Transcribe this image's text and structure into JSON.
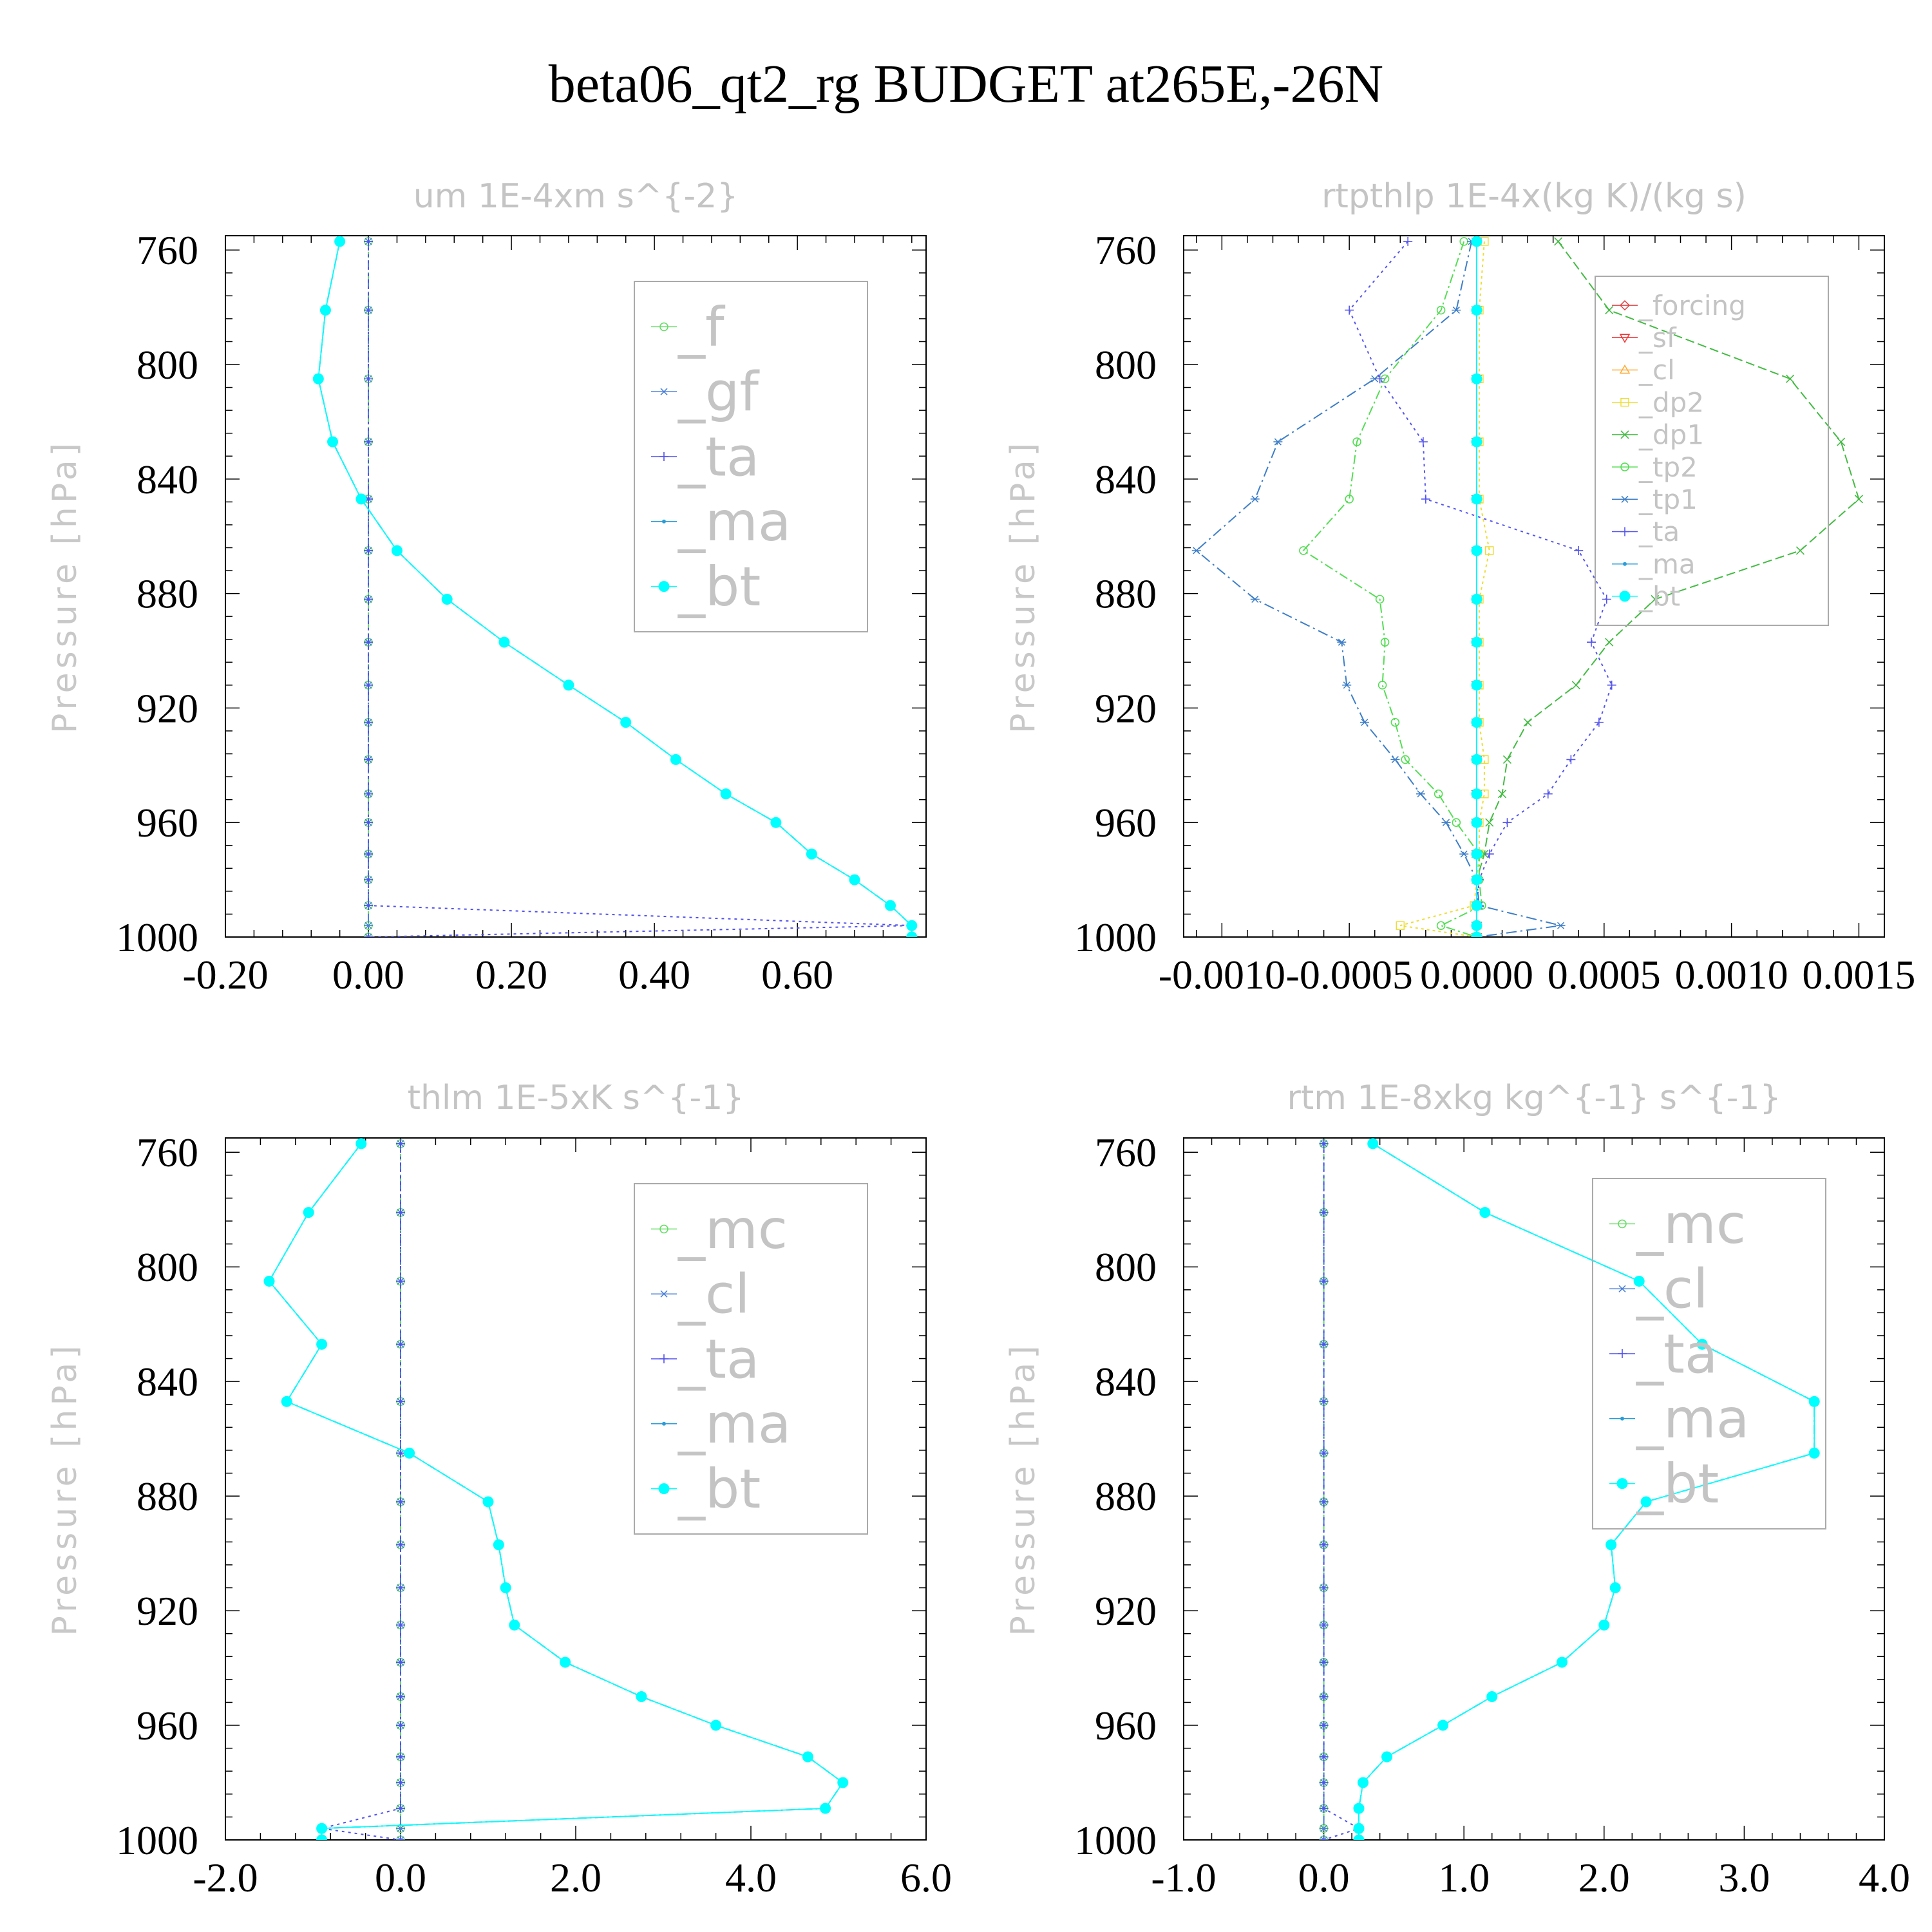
{
  "suptitle": "beta06_qt2_rg  BUDGET at265E,-26N",
  "chart_data": [
    {
      "type": "line",
      "title": "um  1E-4xm s^{-2}",
      "ylabel": "Pressure [hPa]",
      "ylim": [
        1000,
        755
      ],
      "xlim": [
        -0.2,
        0.78
      ],
      "xticks": [
        "-0.20",
        "0.00",
        "0.20",
        "0.40",
        "0.60"
      ],
      "xtick_values": [
        -0.2,
        0.0,
        0.2,
        0.4,
        0.6
      ],
      "yticks": [
        760,
        800,
        840,
        880,
        920,
        960,
        1000
      ],
      "levels": [
        757,
        781,
        805,
        827,
        847,
        865,
        882,
        897,
        912,
        925,
        938,
        950,
        960,
        971,
        980,
        989,
        996,
        1000
      ],
      "series": [
        {
          "name": "_f",
          "color": "#66dd66",
          "marker": "circle",
          "dash": "10,6",
          "values": [
            0,
            0,
            0,
            0,
            0,
            0,
            0,
            0,
            0,
            0,
            0,
            0,
            0,
            0,
            0,
            0,
            0,
            0
          ]
        },
        {
          "name": "_gf",
          "color": "#4a7fd8",
          "marker": "star",
          "dash": "14,6,3,6",
          "values": [
            0,
            0,
            0,
            0,
            0,
            0,
            0,
            0,
            0,
            0,
            0,
            0,
            0,
            0,
            0,
            0,
            0,
            0
          ]
        },
        {
          "name": "_ta",
          "color": "#5050ee",
          "marker": "plus",
          "dash": "4,6",
          "values": [
            0,
            0,
            0,
            0,
            0,
            0,
            0,
            0,
            0,
            0,
            0,
            0,
            0,
            0,
            0,
            0,
            0.76,
            0
          ]
        },
        {
          "name": "_ma",
          "color": "#2a9dd8",
          "marker": "dot",
          "dash": "14,5,3,5",
          "values": [
            -0.04,
            -0.06,
            -0.07,
            -0.05,
            -0.01,
            0.04,
            0.11,
            0.19,
            0.28,
            0.36,
            0.43,
            0.5,
            0.57,
            0.62,
            0.68,
            0.73,
            0.76,
            0.76
          ]
        },
        {
          "name": "_bt",
          "color": "#00ffff",
          "marker": "bigdot",
          "dash": "",
          "values": [
            -0.04,
            -0.06,
            -0.07,
            -0.05,
            -0.01,
            0.04,
            0.11,
            0.19,
            0.28,
            0.36,
            0.43,
            0.5,
            0.57,
            0.62,
            0.68,
            0.73,
            0.76,
            0.76
          ]
        }
      ],
      "legend": {
        "entries": [
          "_f",
          "_gf",
          "_ta",
          "_ma",
          "_bt"
        ],
        "placement": "top-right"
      }
    },
    {
      "type": "line",
      "title": "rtpthlp  1E-4x(kg K)/(kg s)",
      "ylabel": "Pressure [hPa]",
      "ylim": [
        1000,
        755
      ],
      "xlim": [
        -0.00115,
        0.0016
      ],
      "xticks": [
        "-0.0010",
        "-0.0005",
        "0.0000",
        "0.0005",
        "0.0010",
        "0.0015"
      ],
      "xtick_values": [
        -0.001,
        -0.0005,
        0.0,
        0.0005,
        0.001,
        0.0015
      ],
      "yticks": [
        760,
        800,
        840,
        880,
        920,
        960,
        1000
      ],
      "levels": [
        757,
        781,
        805,
        827,
        847,
        865,
        882,
        897,
        912,
        925,
        938,
        950,
        960,
        971,
        980,
        989,
        996,
        1000
      ],
      "series": [
        {
          "name": "_forcing",
          "color": "#dd4444",
          "marker": "diamond",
          "dash": "",
          "values": [
            0,
            0,
            0,
            0,
            0,
            0,
            0,
            0,
            0,
            0,
            0,
            0,
            0,
            0,
            0,
            0,
            0,
            0
          ]
        },
        {
          "name": "_sf",
          "color": "#ee3333",
          "marker": "triangle-down",
          "dash": "",
          "values": [
            0,
            0,
            0,
            0,
            0,
            0,
            0,
            0,
            0,
            0,
            0,
            0,
            0,
            0,
            0,
            0,
            0,
            0
          ]
        },
        {
          "name": "_cl",
          "color": "#ffaa33",
          "marker": "triangle-up",
          "dash": "",
          "values": [
            0,
            0,
            0,
            0,
            0,
            0,
            0,
            0,
            0,
            0,
            0,
            0,
            0,
            0,
            0,
            0,
            0,
            0
          ]
        },
        {
          "name": "_dp2",
          "color": "#eedd33",
          "marker": "square",
          "dash": "4,5",
          "values": [
            3e-05,
            1e-05,
            1e-05,
            1e-05,
            1e-05,
            5e-05,
            1e-05,
            1e-05,
            1e-05,
            1e-05,
            3e-05,
            3e-05,
            1e-05,
            1e-05,
            0.0,
            -1e-05,
            -0.0003,
            0
          ]
        },
        {
          "name": "_dp1",
          "color": "#44bb44",
          "marker": "cross",
          "dash": "14,6",
          "values": [
            0.00032,
            0.00052,
            0.00123,
            0.00143,
            0.0015,
            0.00127,
            0.0007,
            0.00052,
            0.00039,
            0.0002,
            0.00012,
            0.0001,
            5e-05,
            3e-05,
            0.0,
            0.0,
            0.0,
            0
          ]
        },
        {
          "name": "_tp2",
          "color": "#55dd55",
          "marker": "circle",
          "dash": "14,5,3,5",
          "values": [
            -5e-05,
            -0.00014,
            -0.00036,
            -0.00047,
            -0.0005,
            -0.00068,
            -0.00038,
            -0.00036,
            -0.00037,
            -0.00032,
            -0.00028,
            -0.00015,
            -8e-05,
            1e-05,
            1e-05,
            2e-05,
            -0.00014,
            0
          ]
        },
        {
          "name": "_tp1",
          "color": "#3d7ec8",
          "marker": "star",
          "dash": "16,6,3,6",
          "values": [
            -2e-05,
            -8e-05,
            -0.0004,
            -0.00078,
            -0.00087,
            -0.0011,
            -0.00087,
            -0.00053,
            -0.00051,
            -0.00044,
            -0.00032,
            -0.00022,
            -0.00012,
            -5e-05,
            0.0,
            1e-05,
            0.00033,
            0
          ]
        },
        {
          "name": "_ta",
          "color": "#5555ee",
          "marker": "plus",
          "dash": "4,6",
          "values": [
            -0.00027,
            -0.0005,
            -0.00038,
            -0.00021,
            -0.0002,
            0.0004,
            0.00051,
            0.00045,
            0.00053,
            0.00048,
            0.00037,
            0.00028,
            0.00012,
            5e-05,
            1e-05,
            0.0,
            0.0,
            0
          ]
        },
        {
          "name": "_ma",
          "color": "#2a9dd8",
          "marker": "dot",
          "dash": "",
          "values": [
            0,
            0,
            0,
            0,
            0,
            0,
            0,
            0,
            0,
            0,
            0,
            0,
            0,
            0,
            0,
            0,
            0,
            0
          ]
        },
        {
          "name": "_bt",
          "color": "#00ffff",
          "marker": "bigdot",
          "dash": "",
          "values": [
            0,
            0,
            0,
            0,
            0,
            0,
            0,
            0,
            0,
            0,
            0,
            0,
            0,
            0,
            0,
            0,
            0,
            0
          ]
        }
      ],
      "legend": {
        "entries": [
          "_forcing",
          "_sf",
          "_cl",
          "_dp2",
          "_dp1",
          "_tp2",
          "_tp1",
          "_ta",
          "_ma",
          "_bt"
        ],
        "placement": "top-right"
      }
    },
    {
      "type": "line",
      "title": "thlm  1E-5xK s^{-1}",
      "ylabel": "Pressure [hPa]",
      "ylim": [
        1000,
        755
      ],
      "xlim": [
        -2.0,
        6.0
      ],
      "xticks": [
        "-2.0",
        "0.0",
        "2.0",
        "4.0",
        "6.0"
      ],
      "xtick_values": [
        -2.0,
        0.0,
        2.0,
        4.0,
        6.0
      ],
      "yticks": [
        760,
        800,
        840,
        880,
        920,
        960,
        1000
      ],
      "levels": [
        757,
        781,
        805,
        827,
        847,
        865,
        882,
        897,
        912,
        925,
        938,
        950,
        960,
        971,
        980,
        989,
        996,
        1000
      ],
      "series": [
        {
          "name": "_mc",
          "color": "#66dd66",
          "marker": "circle",
          "dash": "10,6",
          "values": [
            0,
            0,
            0,
            0,
            0,
            0,
            0,
            0,
            0,
            0,
            0,
            0,
            0,
            0,
            0,
            0,
            0,
            0
          ]
        },
        {
          "name": "_cl",
          "color": "#4a7fd8",
          "marker": "star",
          "dash": "14,6,3,6",
          "values": [
            0,
            0,
            0,
            0,
            0,
            0,
            0,
            0,
            0,
            0,
            0,
            0,
            0,
            0,
            0,
            0,
            0,
            0
          ]
        },
        {
          "name": "_ta",
          "color": "#5050ee",
          "marker": "plus",
          "dash": "4,6",
          "values": [
            0,
            0,
            0,
            0,
            0,
            0,
            0,
            0,
            0,
            0,
            0,
            0,
            0,
            0,
            0,
            0,
            -0.9,
            0
          ]
        },
        {
          "name": "_ma",
          "color": "#2a9dd8",
          "marker": "dot",
          "dash": "14,5,3,5",
          "values": [
            -0.45,
            -1.05,
            -1.5,
            -0.9,
            -1.3,
            0.1,
            1.0,
            1.12,
            1.2,
            1.3,
            1.88,
            2.75,
            3.6,
            4.65,
            5.05,
            4.85,
            -0.9,
            -0.9
          ]
        },
        {
          "name": "_bt",
          "color": "#00ffff",
          "marker": "bigdot",
          "dash": "",
          "values": [
            -0.45,
            -1.05,
            -1.5,
            -0.9,
            -1.3,
            0.1,
            1.0,
            1.12,
            1.2,
            1.3,
            1.88,
            2.75,
            3.6,
            4.65,
            5.05,
            4.85,
            -0.9,
            -0.9
          ]
        }
      ],
      "legend": {
        "entries": [
          "_mc",
          "_cl",
          "_ta",
          "_ma",
          "_bt"
        ],
        "placement": "top-right"
      }
    },
    {
      "type": "line",
      "title": "rtm  1E-8xkg kg^{-1} s^{-1}",
      "ylabel": "Pressure [hPa]",
      "ylim": [
        1000,
        755
      ],
      "xlim": [
        -1.0,
        4.0
      ],
      "xticks": [
        "-1.0",
        "0.0",
        "1.0",
        "2.0",
        "3.0",
        "4.0"
      ],
      "xtick_values": [
        -1.0,
        0.0,
        1.0,
        2.0,
        3.0,
        4.0
      ],
      "yticks": [
        760,
        800,
        840,
        880,
        920,
        960,
        1000
      ],
      "levels": [
        757,
        781,
        805,
        827,
        847,
        865,
        882,
        897,
        912,
        925,
        938,
        950,
        960,
        971,
        980,
        989,
        996,
        1000
      ],
      "series": [
        {
          "name": "_mc",
          "color": "#66dd66",
          "marker": "circle",
          "dash": "10,6",
          "values": [
            0,
            0,
            0,
            0,
            0,
            0,
            0,
            0,
            0,
            0,
            0,
            0,
            0,
            0,
            0,
            0,
            0,
            0
          ]
        },
        {
          "name": "_cl",
          "color": "#4a7fd8",
          "marker": "star",
          "dash": "14,6,3,6",
          "values": [
            0,
            0,
            0,
            0,
            0,
            0,
            0,
            0,
            0,
            0,
            0,
            0,
            0,
            0,
            0,
            0,
            0,
            0
          ]
        },
        {
          "name": "_ta",
          "color": "#5050ee",
          "marker": "plus",
          "dash": "4,6",
          "values": [
            0,
            0,
            0,
            0,
            0,
            0,
            0,
            0,
            0,
            0,
            0,
            0,
            0,
            0,
            0,
            0,
            0.25,
            0
          ]
        },
        {
          "name": "_ma",
          "color": "#2a9dd8",
          "marker": "dot",
          "dash": "14,5,3,5",
          "values": [
            0.35,
            1.15,
            2.25,
            2.7,
            3.5,
            3.5,
            2.3,
            2.05,
            2.08,
            2.0,
            1.7,
            1.2,
            0.85,
            0.45,
            0.28,
            0.25,
            0.25,
            0.25
          ]
        },
        {
          "name": "_bt",
          "color": "#00ffff",
          "marker": "bigdot",
          "dash": "",
          "values": [
            0.35,
            1.15,
            2.25,
            2.7,
            3.5,
            3.5,
            2.3,
            2.05,
            2.08,
            2.0,
            1.7,
            1.2,
            0.85,
            0.45,
            0.28,
            0.25,
            0.25,
            0.25
          ]
        }
      ],
      "legend": {
        "entries": [
          "_mc",
          "_cl",
          "_ta",
          "_ma",
          "_bt"
        ],
        "placement": "top-right"
      }
    }
  ]
}
